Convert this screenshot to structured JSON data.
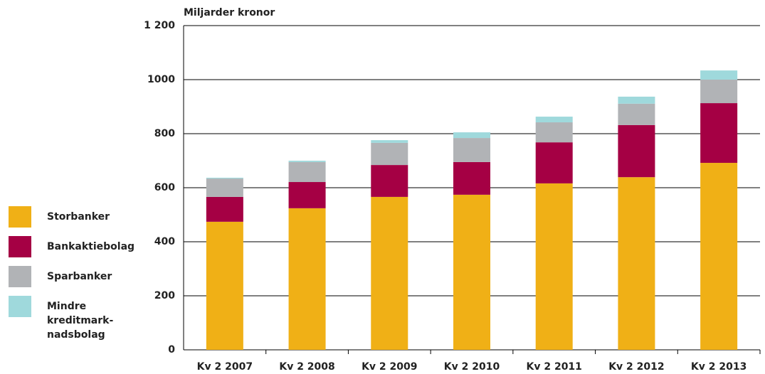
{
  "chart_data": {
    "type": "stacked_bar",
    "title": "Miljarder kronor",
    "categories": [
      "Kv 2 2007",
      "Kv 2 2008",
      "Kv 2 2009",
      "Kv 2 2010",
      "Kv 2 2011",
      "Kv 2 2012",
      "Kv 2 2013"
    ],
    "series": [
      {
        "name": "Storbanker",
        "color": "#f0b016",
        "values": [
          474,
          524,
          566,
          574,
          616,
          639,
          692
        ]
      },
      {
        "name": "Bankaktiebolag",
        "color": "#a50044",
        "values": [
          92,
          97,
          118,
          121,
          152,
          193,
          221
        ]
      },
      {
        "name": "Sparbanker",
        "color": "#b1b3b6",
        "values": [
          68,
          74,
          82,
          89,
          74,
          79,
          87
        ]
      },
      {
        "name": "Mindre kreditmark-nadsbolag",
        "color": "#9fd9dc",
        "values": [
          3,
          5,
          10,
          21,
          21,
          26,
          34
        ]
      }
    ],
    "ylim": [
      0,
      1200
    ],
    "yticks": [
      0,
      200,
      400,
      600,
      800,
      1000,
      {
        "value": 1200,
        "label": "1 200"
      }
    ],
    "grid": true,
    "legend": "left"
  }
}
